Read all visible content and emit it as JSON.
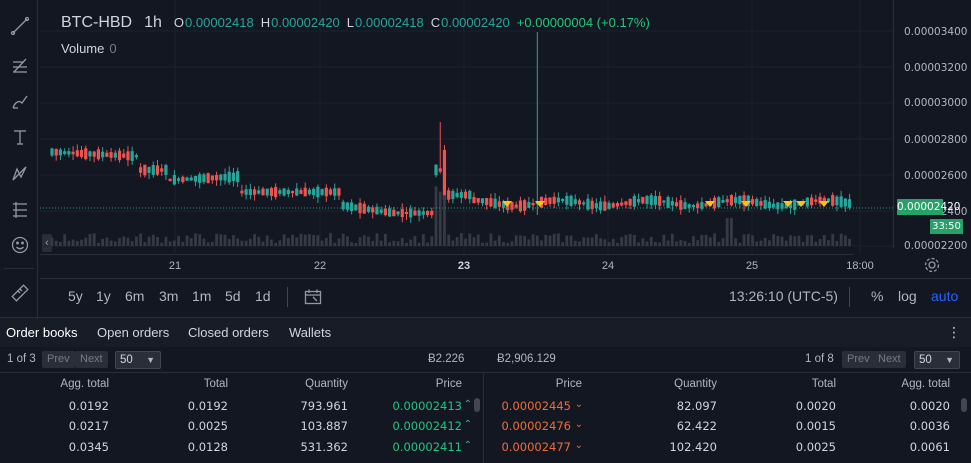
{
  "legend": {
    "symbol": "BTC-HBD",
    "timeframe": "1h",
    "open_label": "O",
    "open": "0.00002418",
    "high_label": "H",
    "high": "0.00002420",
    "low_label": "L",
    "low": "0.00002418",
    "close_label": "C",
    "close": "0.00002420",
    "change": "+0.00000004 (+0.17%)",
    "volume_label": "Volume",
    "volume": "0"
  },
  "colors": {
    "up": "#26a69a",
    "down": "#ef5350",
    "accent": "#2962ff",
    "marker": "#f5c518"
  },
  "price_scale": [
    "0.00003400",
    "0.00003200",
    "0.00003000",
    "0.00002800",
    "0.00002600",
    "0.00002400",
    "0.00002200"
  ],
  "last_price": "0.00002420",
  "countdown": "33:50",
  "time_scale": [
    "21",
    "22",
    "23",
    "24",
    "25",
    "18:00"
  ],
  "icons": [
    "trend-line-icon",
    "fib-icon",
    "brush-icon",
    "text-icon",
    "pattern-icon",
    "prediction-icon",
    "emoji-icon",
    "ruler-icon"
  ],
  "ranges": [
    "5y",
    "1y",
    "6m",
    "3m",
    "1m",
    "5d",
    "1d"
  ],
  "clock": "13:26:10 (UTC-5)",
  "scale_buttons": {
    "percent": "%",
    "log": "log",
    "auto": "auto"
  },
  "tabs": [
    "Order books",
    "Open orders",
    "Closed orders",
    "Wallets"
  ],
  "tabs_menu": "⋮",
  "order_book": {
    "bids_pager": {
      "page": "1 of 3",
      "prev": "Prev",
      "next": "Next",
      "size": "50"
    },
    "asks_pager": {
      "page": "1 of 8",
      "prev": "Prev",
      "next": "Next",
      "size": "50"
    },
    "sum_left": "Ƀ2.226",
    "sum_right": "Ƀ2,906.129",
    "bid_headers": [
      "Agg. total",
      "Total",
      "Quantity",
      "Price"
    ],
    "ask_headers": [
      "Price",
      "Quantity",
      "Total",
      "Agg. total"
    ],
    "bids": [
      {
        "agg": "0.0192",
        "total": "0.0192",
        "qty": "793.961",
        "price": "0.00002413"
      },
      {
        "agg": "0.0217",
        "total": "0.0025",
        "qty": "103.887",
        "price": "0.00002412"
      },
      {
        "agg": "0.0345",
        "total": "0.0128",
        "qty": "531.362",
        "price": "0.00002411"
      }
    ],
    "asks": [
      {
        "price": "0.00002445",
        "qty": "82.097",
        "total": "0.0020",
        "agg": "0.0020"
      },
      {
        "price": "0.00002476",
        "qty": "62.422",
        "total": "0.0015",
        "agg": "0.0036"
      },
      {
        "price": "0.00002477",
        "qty": "102.420",
        "total": "0.0025",
        "agg": "0.0061"
      }
    ]
  }
}
